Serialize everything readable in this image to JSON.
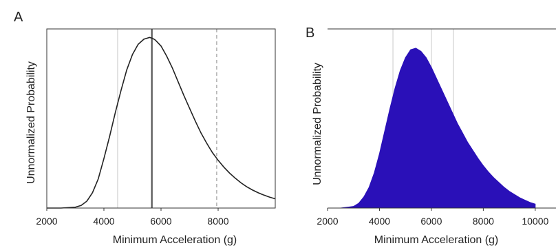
{
  "colors": {
    "axis": "#333333",
    "curve": "#222222",
    "fill_b": "#2a10b8",
    "grid_b": "#d8d8d8",
    "text": "#222222"
  },
  "panels": [
    {
      "letter": "A"
    },
    {
      "letter": "B"
    }
  ],
  "chart_data": [
    {
      "type": "line",
      "panel": "A",
      "xlabel": "Minimum Acceleration (g)",
      "ylabel": "Unnormalized Probability",
      "xlim": [
        2000,
        10000
      ],
      "ylim": [
        0,
        1.05
      ],
      "xticks": [
        "2000",
        "4000",
        "6000",
        "8000"
      ],
      "xtick_values": [
        2000,
        4000,
        6000,
        8000
      ],
      "grid": false,
      "series": [
        {
          "x": [
            2000,
            2500,
            3000,
            3200,
            3400,
            3600,
            3800,
            4000,
            4200,
            4400,
            4600,
            4800,
            5000,
            5200,
            5400,
            5600,
            5700,
            5800,
            6000,
            6200,
            6400,
            6600,
            6800,
            7000,
            7200,
            7400,
            7600,
            7800,
            8000,
            8200,
            8400,
            8600,
            8800,
            9000,
            9200,
            9400,
            9600,
            9800,
            10000
          ],
          "y": [
            0.0,
            0.0,
            0.005,
            0.015,
            0.04,
            0.09,
            0.17,
            0.29,
            0.42,
            0.56,
            0.69,
            0.81,
            0.9,
            0.96,
            0.99,
            1.0,
            0.995,
            0.985,
            0.95,
            0.89,
            0.82,
            0.74,
            0.66,
            0.585,
            0.51,
            0.44,
            0.38,
            0.325,
            0.28,
            0.24,
            0.205,
            0.175,
            0.148,
            0.125,
            0.106,
            0.09,
            0.076,
            0.064,
            0.054
          ]
        }
      ],
      "vlines": [
        {
          "x": 5680,
          "style": "solid-bold"
        },
        {
          "x": 4480,
          "style": "faint"
        },
        {
          "x": 7950,
          "style": "dashed"
        }
      ]
    },
    {
      "type": "area",
      "panel": "B",
      "xlabel": "Minimum Acceleration (g)",
      "ylabel": "Unnormalized Probability",
      "xlim": [
        2000,
        10800
      ],
      "ylim": [
        0,
        1.12
      ],
      "xticks": [
        "2000",
        "4000",
        "6000",
        "8000",
        "10000"
      ],
      "xtick_values": [
        2000,
        4000,
        6000,
        8000,
        10000
      ],
      "series": [
        {
          "x": [
            2500,
            3000,
            3200,
            3400,
            3600,
            3800,
            4000,
            4200,
            4400,
            4600,
            4800,
            5000,
            5200,
            5400,
            5600,
            5800,
            6000,
            6200,
            6400,
            6600,
            6800,
            7000,
            7200,
            7400,
            7600,
            7800,
            8000,
            8200,
            8400,
            8600,
            8800,
            9000,
            9200,
            9400,
            9600,
            9800,
            10000
          ],
          "y": [
            0.0,
            0.01,
            0.03,
            0.07,
            0.13,
            0.22,
            0.34,
            0.48,
            0.62,
            0.75,
            0.86,
            0.94,
            0.99,
            1.0,
            0.98,
            0.94,
            0.88,
            0.81,
            0.74,
            0.67,
            0.6,
            0.53,
            0.47,
            0.41,
            0.36,
            0.31,
            0.265,
            0.225,
            0.19,
            0.16,
            0.13,
            0.105,
            0.085,
            0.065,
            0.05,
            0.035,
            0.025
          ]
        }
      ],
      "vlines": [
        {
          "x": 4520,
          "style": "faint"
        },
        {
          "x": 6000,
          "style": "faint"
        },
        {
          "x": 6850,
          "style": "faint"
        }
      ]
    }
  ]
}
